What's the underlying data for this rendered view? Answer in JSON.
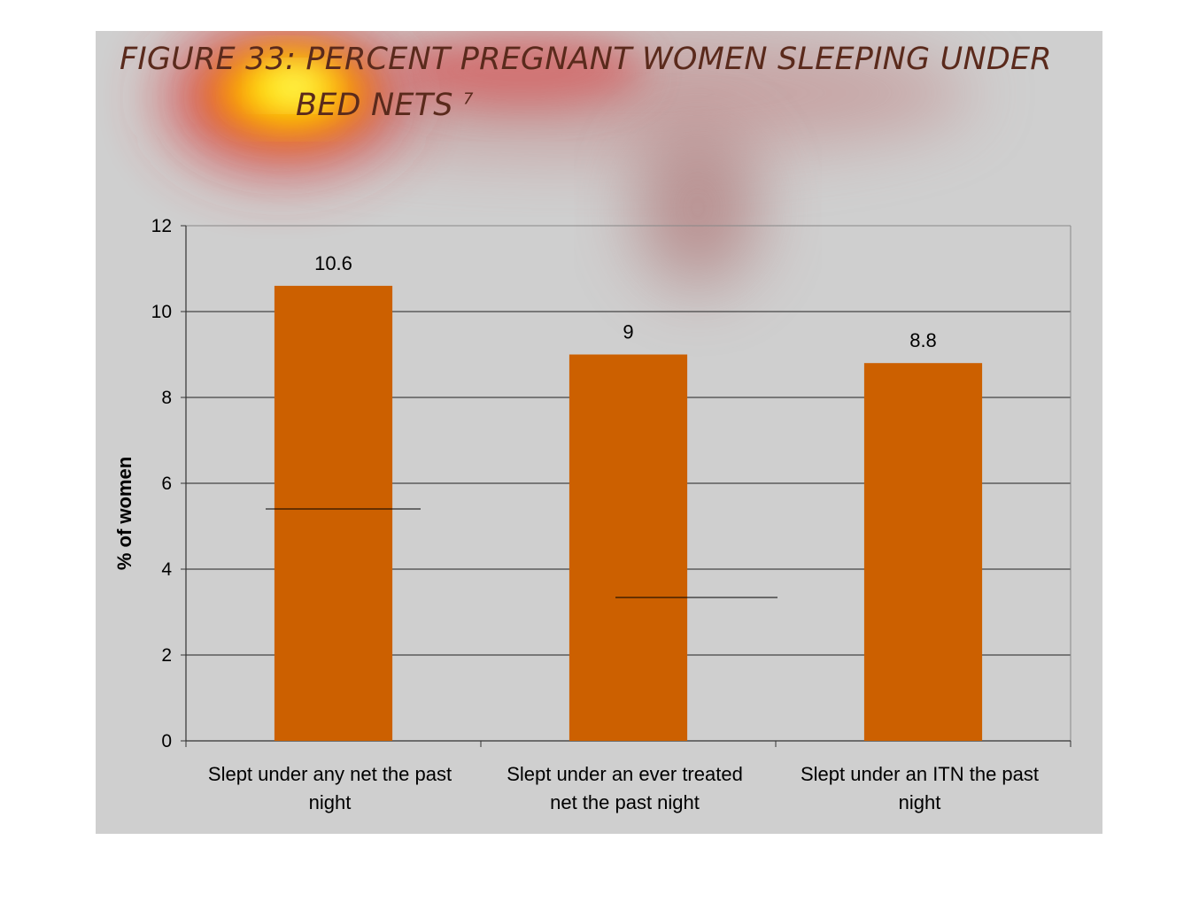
{
  "title": {
    "line1": "FIGURE 33: PERCENT PREGNANT WOMEN SLEEPING UNDER",
    "line2": "BED NETS",
    "superscript": "7"
  },
  "colors": {
    "slide_background": "#cfcfcf",
    "bar": "#cc6000",
    "gridline": "#222222",
    "title": "#5a2a1c"
  },
  "chart_data": {
    "type": "bar",
    "categories": [
      [
        "Slept under any net the past",
        "night"
      ],
      [
        "Slept under an ever treated",
        "net the past night"
      ],
      [
        "Slept under an ITN the past",
        "night"
      ]
    ],
    "values": [
      10.6,
      9,
      8.8
    ],
    "data_labels": [
      "10.6",
      "9",
      "8.8"
    ],
    "ylabel": "% of women",
    "xlabel": "",
    "ylim": [
      0,
      12
    ],
    "yticks": [
      0,
      2,
      4,
      6,
      8,
      10,
      12
    ],
    "grid": true,
    "legend": "none"
  }
}
